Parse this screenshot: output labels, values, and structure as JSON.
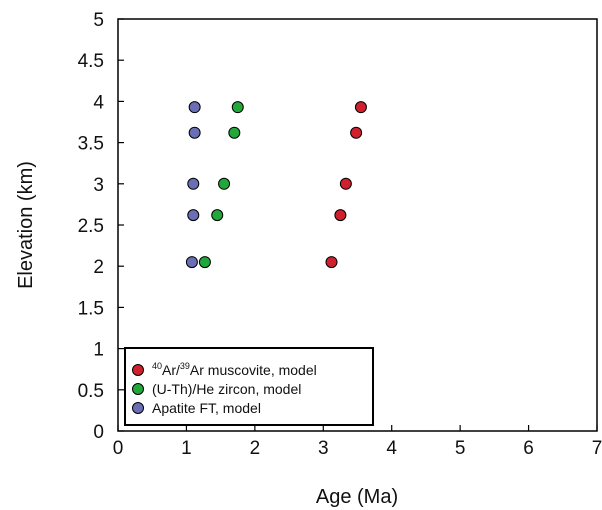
{
  "chart_data": {
    "type": "scatter",
    "xlabel": "Age (Ma)",
    "ylabel": "Elevation (km)",
    "xlim": [
      0,
      7
    ],
    "ylim": [
      0,
      5
    ],
    "x_ticks": [
      "0",
      "1",
      "2",
      "3",
      "4",
      "5",
      "6",
      "7"
    ],
    "y_ticks": [
      "0",
      "0.5",
      "1",
      "1.5",
      "2",
      "2.5",
      "3",
      "3.5",
      "4",
      "4.5",
      "5"
    ],
    "grid": false,
    "legend_position": "bottom-left",
    "series": [
      {
        "name": "40Ar/39Ar muscovite, model",
        "label_parts": {
          "sup1": "40",
          "mid": "Ar/",
          "sup2": "39",
          "rest": "Ar muscovite, model"
        },
        "color": "#d0202e",
        "points": [
          [
            3.55,
            3.93
          ],
          [
            3.48,
            3.62
          ],
          [
            3.33,
            3.0
          ],
          [
            3.25,
            2.62
          ],
          [
            3.12,
            2.05
          ]
        ]
      },
      {
        "name": "(U-Th)/He zircon, model",
        "color": "#22a83a",
        "points": [
          [
            1.75,
            3.93
          ],
          [
            1.7,
            3.62
          ],
          [
            1.55,
            3.0
          ],
          [
            1.45,
            2.62
          ],
          [
            1.27,
            2.05
          ]
        ]
      },
      {
        "name": "Apatite FT, model",
        "color": "#6a6eb4",
        "points": [
          [
            1.12,
            3.93
          ],
          [
            1.12,
            3.62
          ],
          [
            1.1,
            3.0
          ],
          [
            1.1,
            2.62
          ],
          [
            1.08,
            2.05
          ]
        ]
      }
    ]
  }
}
